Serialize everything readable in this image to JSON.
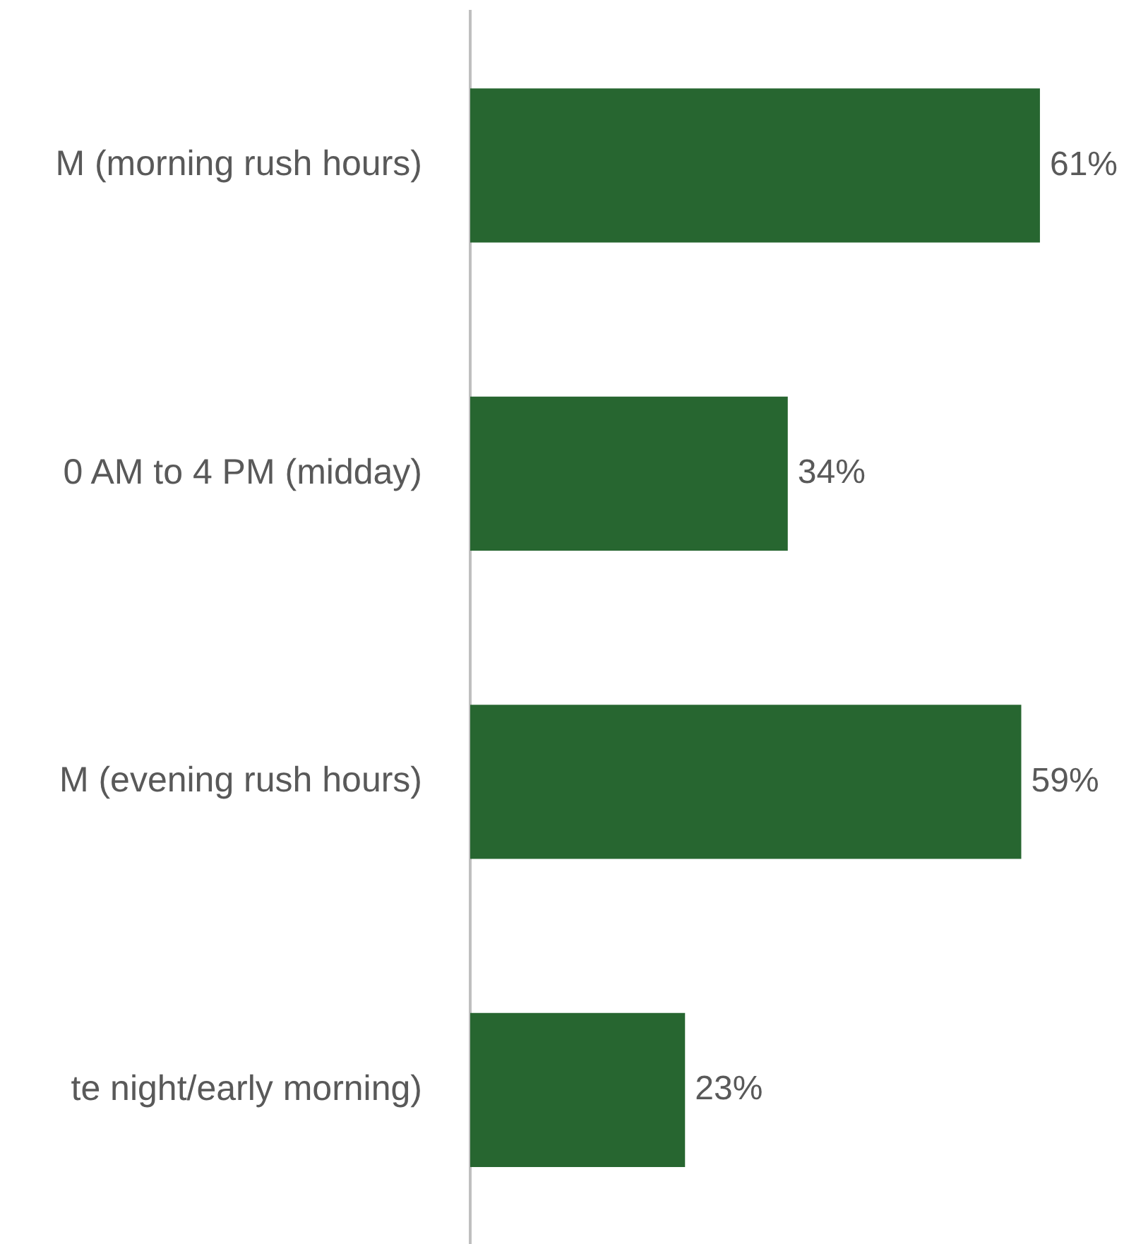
{
  "chart_data": {
    "type": "bar",
    "orientation": "horizontal",
    "categories": [
      "M (morning rush hours)",
      "0 AM to 4 PM (midday)",
      "M (evening rush hours)",
      "te night/early morning)"
    ],
    "values": [
      61,
      34,
      59,
      23
    ],
    "color": "#276630",
    "data_labels": true,
    "value_labels": [
      "61%",
      "34%",
      "59%",
      "23%"
    ],
    "legend": false,
    "tick_labels": "y"
  }
}
